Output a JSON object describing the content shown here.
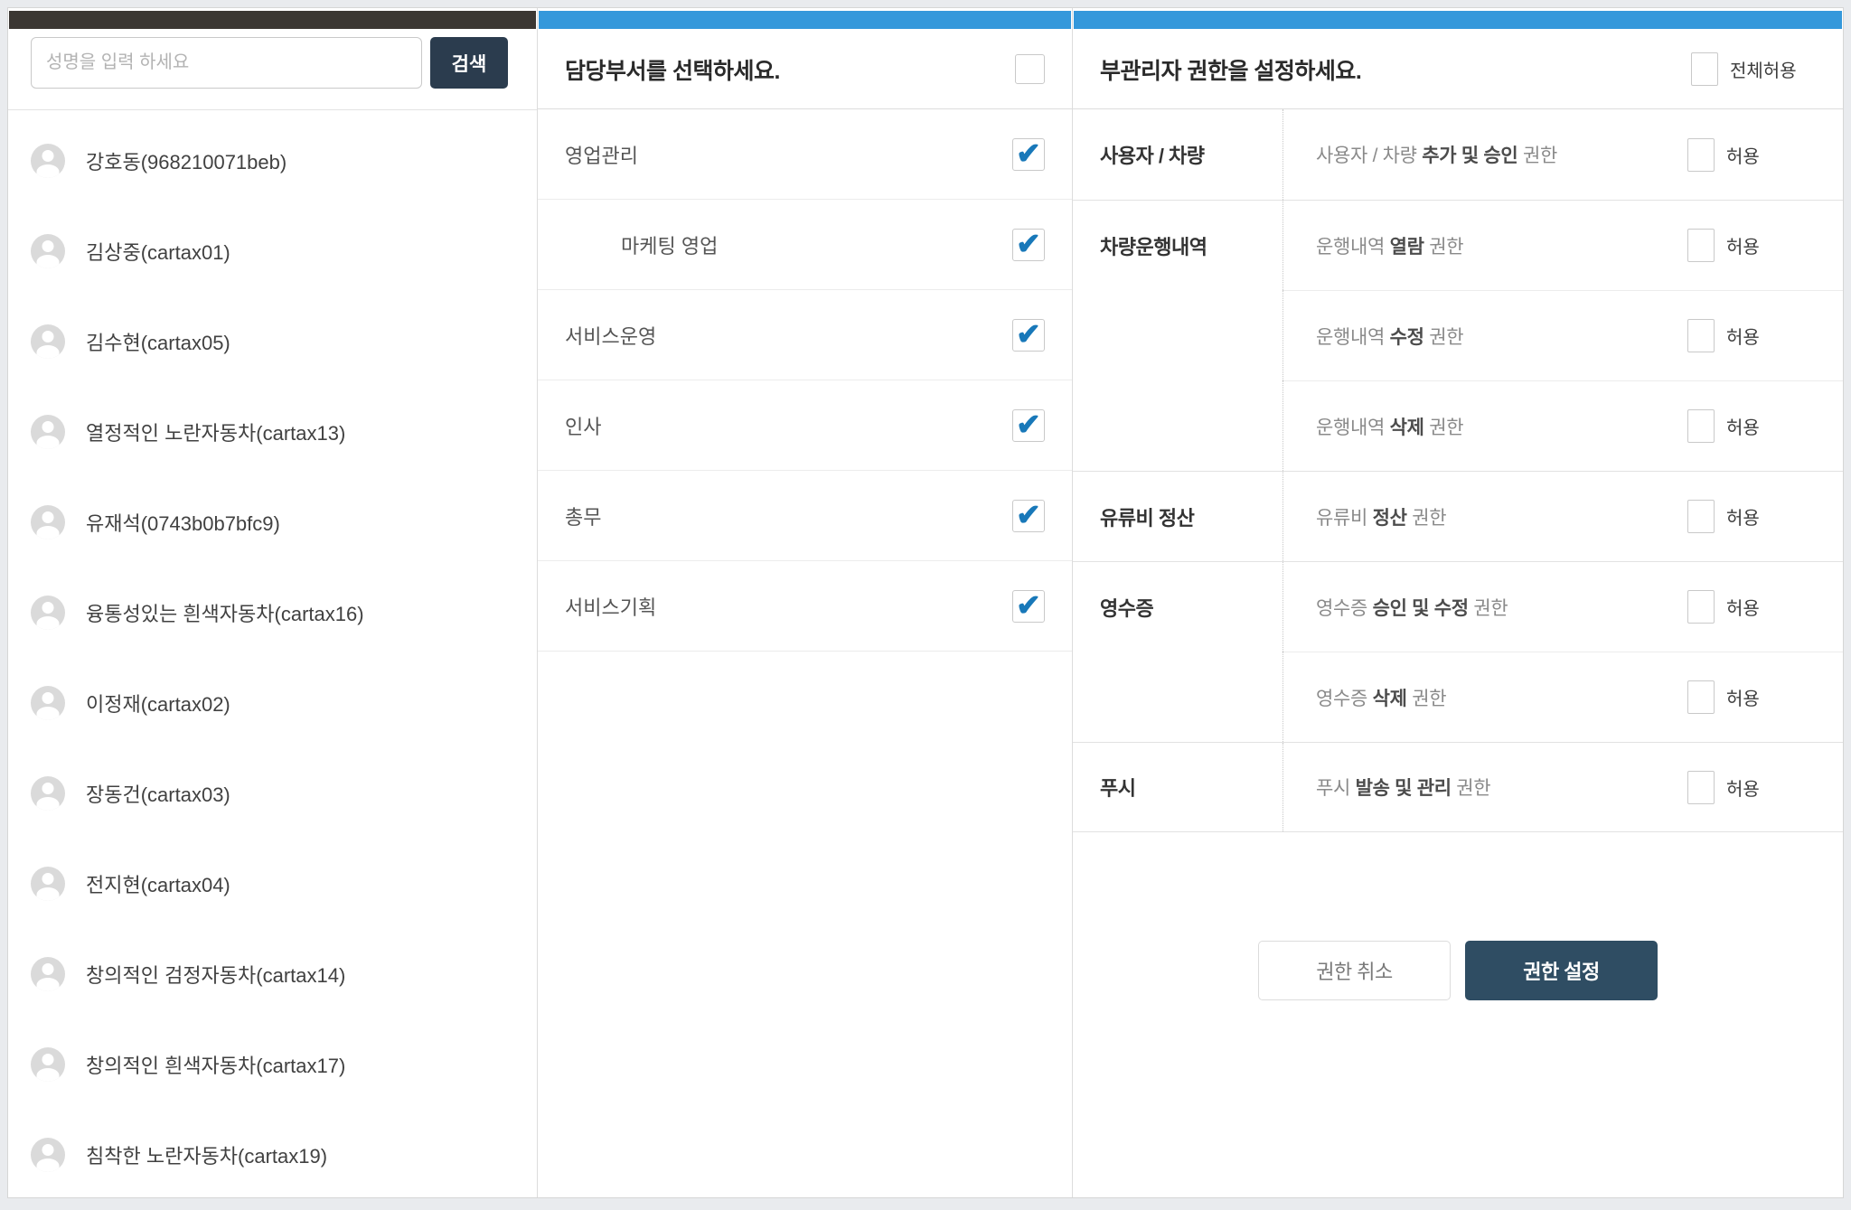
{
  "glyphs": {
    "check": "✔"
  },
  "colors": {
    "accent_blue": "#3498db",
    "dark_bar": "#3b3733",
    "check_blue": "#1878b9",
    "search_button": "#2b3c4e",
    "confirm_button": "#2f4d63"
  },
  "left_panel": {
    "search": {
      "placeholder": "성명을 입력 하세요",
      "button": "검색"
    },
    "users": [
      {
        "name": "강호동(968210071beb)"
      },
      {
        "name": "김상중(cartax01)"
      },
      {
        "name": "김수현(cartax05)"
      },
      {
        "name": "열정적인 노란자동차(cartax13)"
      },
      {
        "name": "유재석(0743b0b7bfc9)"
      },
      {
        "name": "융통성있는 흰색자동차(cartax16)"
      },
      {
        "name": "이정재(cartax02)"
      },
      {
        "name": "장동건(cartax03)"
      },
      {
        "name": "전지현(cartax04)"
      },
      {
        "name": "창의적인 검정자동차(cartax14)"
      },
      {
        "name": "창의적인 흰색자동차(cartax17)"
      },
      {
        "name": "침착한 노란자동차(cartax19)"
      }
    ]
  },
  "middle_panel": {
    "title": "담당부서를 선택하세요.",
    "select_all_checked": false,
    "departments": [
      {
        "label": "영업관리",
        "checked": true,
        "indent": 0
      },
      {
        "label": "마케팅 영업",
        "checked": true,
        "indent": 1
      },
      {
        "label": "서비스운영",
        "checked": true,
        "indent": 0
      },
      {
        "label": "인사",
        "checked": true,
        "indent": 0
      },
      {
        "label": "총무",
        "checked": true,
        "indent": 0
      },
      {
        "label": "서비스기획",
        "checked": true,
        "indent": 0
      }
    ]
  },
  "right_panel": {
    "title": "부관리자 권한을 설정하세요.",
    "allow_all_label": "전체허용",
    "allow_all_checked": false,
    "allow_label": "허용",
    "permissions": [
      {
        "category": "사용자 / 차량",
        "desc_pre": "사용자 / 차량 ",
        "desc_bold": "추가 및 승인",
        "desc_post": " 권한",
        "checked": false
      },
      {
        "category": "차량운행내역",
        "desc_pre": "운행내역 ",
        "desc_bold": "열람",
        "desc_post": " 권한",
        "checked": false
      },
      {
        "category": "",
        "desc_pre": "운행내역 ",
        "desc_bold": "수정",
        "desc_post": " 권한",
        "checked": false
      },
      {
        "category": "",
        "desc_pre": "운행내역 ",
        "desc_bold": "삭제",
        "desc_post": " 권한",
        "checked": false
      },
      {
        "category": "유류비 정산",
        "desc_pre": "유류비 ",
        "desc_bold": "정산",
        "desc_post": " 권한",
        "checked": false
      },
      {
        "category": "영수증",
        "desc_pre": "영수증 ",
        "desc_bold": "승인 및 수정",
        "desc_post": " 권한",
        "checked": false
      },
      {
        "category": "",
        "desc_pre": "영수증 ",
        "desc_bold": "삭제",
        "desc_post": " 권한",
        "checked": false
      },
      {
        "category": "푸시",
        "desc_pre": "푸시 ",
        "desc_bold": "발송 및 관리",
        "desc_post": " 권한",
        "checked": false
      }
    ],
    "buttons": {
      "cancel": "권한 취소",
      "confirm": "권한 설정"
    }
  }
}
